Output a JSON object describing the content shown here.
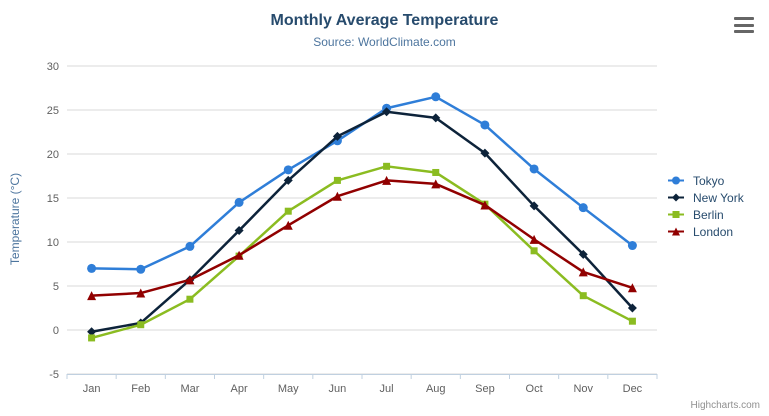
{
  "chart_data": {
    "type": "line",
    "title": "Monthly Average Temperature",
    "subtitle": "Source: WorldClimate.com",
    "xlabel": "",
    "ylabel": "Temperature (°C)",
    "categories": [
      "Jan",
      "Feb",
      "Mar",
      "Apr",
      "May",
      "Jun",
      "Jul",
      "Aug",
      "Sep",
      "Oct",
      "Nov",
      "Dec"
    ],
    "ylim": [
      -5,
      30
    ],
    "ytick_interval": 5,
    "yticks": [
      -5,
      0,
      5,
      10,
      15,
      20,
      25,
      30
    ],
    "grid": true,
    "legend_position": "right",
    "series": [
      {
        "name": "Tokyo",
        "color": "#2f7ed8",
        "marker": "circle",
        "values": [
          7.0,
          6.9,
          9.5,
          14.5,
          18.2,
          21.5,
          25.2,
          26.5,
          23.3,
          18.3,
          13.9,
          9.6
        ]
      },
      {
        "name": "New York",
        "color": "#0d233a",
        "marker": "diamond",
        "values": [
          -0.2,
          0.8,
          5.7,
          11.3,
          17.0,
          22.0,
          24.8,
          24.1,
          20.1,
          14.1,
          8.6,
          2.5
        ]
      },
      {
        "name": "Berlin",
        "color": "#8bbc21",
        "marker": "square",
        "values": [
          -0.9,
          0.6,
          3.5,
          8.4,
          13.5,
          17.0,
          18.6,
          17.9,
          14.3,
          9.0,
          3.9,
          1.0
        ]
      },
      {
        "name": "London",
        "color": "#910000",
        "marker": "triangle",
        "values": [
          3.9,
          4.2,
          5.7,
          8.5,
          11.9,
          15.2,
          17.0,
          16.6,
          14.2,
          10.3,
          6.6,
          4.8
        ]
      }
    ],
    "credits": "Highcharts.com",
    "colors": {
      "title": "#274b6d",
      "subtitle": "#4d759e",
      "axis_labels": "#606060",
      "gridline": "#d8d8d8",
      "axis_line": "#c0d0e0",
      "legend_text": "#274b6d",
      "credits_text": "#909090",
      "menu_icon": "#666666",
      "background": "#ffffff"
    }
  },
  "controls": {
    "context_menu_icon": "hamburger-icon"
  }
}
